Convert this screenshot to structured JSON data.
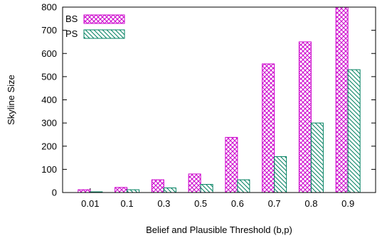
{
  "chart_data": {
    "type": "bar",
    "xlabel": "Belief and Plausible Threshold (b,p)",
    "ylabel": "Skyline Size",
    "categories": [
      "0.01",
      "0.1",
      "0.3",
      "0.5",
      "0.6",
      "0.7",
      "0.8",
      "0.9"
    ],
    "ylim": [
      0,
      800
    ],
    "yticks": [
      0,
      100,
      200,
      300,
      400,
      500,
      600,
      700,
      800
    ],
    "grid": false,
    "legend_position": "top-left",
    "series": [
      {
        "name": "BS",
        "values": [
          12,
          22,
          55,
          80,
          238,
          555,
          650,
          800
        ],
        "color": "#cc00cc",
        "pattern": "crosshatch"
      },
      {
        "name": "PS",
        "values": [
          3,
          12,
          20,
          35,
          55,
          155,
          300,
          530
        ],
        "color": "#008060",
        "pattern": "diagonal"
      }
    ]
  }
}
